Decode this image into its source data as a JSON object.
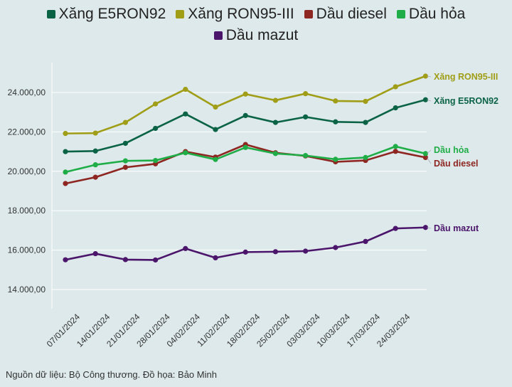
{
  "chart_data": {
    "type": "line",
    "title": "",
    "xlabel": "",
    "ylabel": "",
    "ylim": [
      13000,
      25500
    ],
    "yticks": [
      14000,
      16000,
      18000,
      20000,
      22000,
      24000
    ],
    "ytick_labels": [
      "14.000,00",
      "16.000,00",
      "18.000,00",
      "20.000,00",
      "22.000,00",
      "24.000,00"
    ],
    "grid": "horizontal",
    "legend_position": "top-center",
    "x_tick_labels": [
      "07/01/2024",
      "14/01/2024",
      "21/01/2024",
      "28/01/2024",
      "04/02/2024",
      "11/02/2024",
      "18/02/2024",
      "25/02/2024",
      "03/03/2024",
      "10/03/2024",
      "17/03/2024",
      "24/03/2024"
    ],
    "x": [
      "04/01/2024",
      "11/01/2024",
      "18/01/2024",
      "25/01/2024",
      "01/02/2024",
      "08/02/2024",
      "15/02/2024",
      "22/02/2024",
      "29/02/2024",
      "07/03/2024",
      "14/03/2024",
      "21/03/2024",
      "28/03/2024"
    ],
    "series": [
      {
        "name": "Xăng E5RON92",
        "color": "#0b6346",
        "values": [
          21000,
          21030,
          21420,
          22180,
          22910,
          22120,
          22830,
          22480,
          22760,
          22510,
          22480,
          23220,
          23630
        ]
      },
      {
        "name": "Xăng RON95-III",
        "color": "#a09d17",
        "values": [
          21920,
          21940,
          22480,
          23420,
          24160,
          23260,
          23920,
          23600,
          23940,
          23570,
          23550,
          24290,
          24830
        ]
      },
      {
        "name": "Dầu diesel",
        "color": "#8e2622",
        "values": [
          19380,
          19700,
          20200,
          20380,
          21000,
          20720,
          21360,
          20940,
          20780,
          20480,
          20550,
          21010,
          20700
        ]
      },
      {
        "name": "Dầu hỏa",
        "color": "#1fad47",
        "values": [
          19960,
          20330,
          20530,
          20550,
          20940,
          20600,
          21210,
          20900,
          20800,
          20610,
          20700,
          21260,
          20900
        ]
      },
      {
        "name": "Dầu mazut",
        "color": "#4b156b",
        "values": [
          15510,
          15820,
          15520,
          15500,
          16080,
          15610,
          15900,
          15920,
          15950,
          16130,
          16440,
          17100,
          17150
        ]
      }
    ],
    "end_labels": [
      "Xăng RON95-III",
      "Xăng E5RON92",
      "Dầu hỏa",
      "Dầu diesel",
      "Dầu mazut"
    ]
  },
  "legend_rows": [
    [
      "Xăng E5RON92",
      "Xăng RON95-III",
      "Dầu diesel",
      "Dầu hỏa"
    ],
    [
      "Dầu mazut"
    ]
  ],
  "source_text": "Nguồn dữ liệu: Bộ Công thương. Đồ họa: Bảo Minh"
}
